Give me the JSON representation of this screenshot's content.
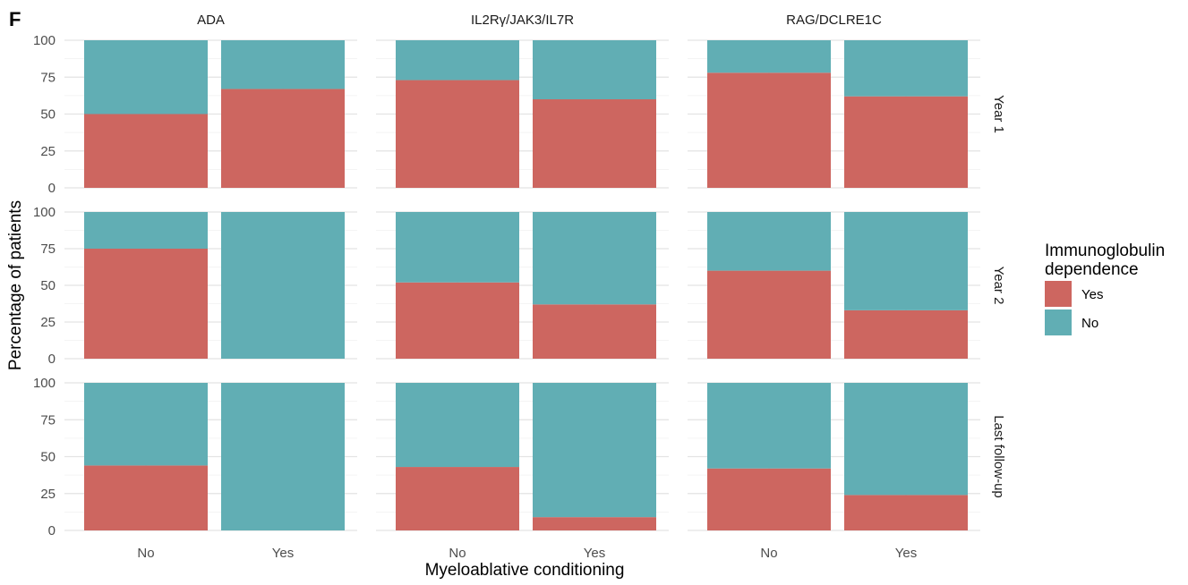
{
  "panel_label": "F",
  "colors": {
    "Yes": "#CD6660",
    "No": "#61AEB4"
  },
  "chart_data": {
    "type": "bar",
    "stacked": true,
    "percent_scale": true,
    "facet_columns": [
      "ADA",
      "IL2Rγ/JAK3/IL7R",
      "RAG/DCLRE1C"
    ],
    "facet_rows": [
      "Year 1",
      "Year 2",
      "Last follow-up"
    ],
    "categories": [
      "No",
      "Yes"
    ],
    "xlabel": "Myeloablative conditioning",
    "ylabel": "Percentage of patients",
    "ylim": [
      0,
      100
    ],
    "yticks": [
      0,
      25,
      50,
      75,
      100
    ],
    "grid": true,
    "legend": {
      "title": "Immunoglobulin dependence",
      "title_lines": [
        "Immunoglobulin",
        "dependence"
      ],
      "position": "right",
      "entries": [
        "Yes",
        "No"
      ]
    },
    "series": [
      {
        "name": "Yes",
        "values": [
          [
            [
              50,
              67
            ],
            [
              73,
              60
            ],
            [
              78,
              62
            ]
          ],
          [
            [
              75,
              0
            ],
            [
              52,
              37
            ],
            [
              60,
              33
            ]
          ],
          [
            [
              44,
              0
            ],
            [
              43,
              9
            ],
            [
              42,
              24
            ]
          ]
        ]
      },
      {
        "name": "No",
        "values": [
          [
            [
              50,
              33
            ],
            [
              27,
              40
            ],
            [
              22,
              38
            ]
          ],
          [
            [
              25,
              100
            ],
            [
              48,
              63
            ],
            [
              40,
              67
            ]
          ],
          [
            [
              56,
              100
            ],
            [
              57,
              91
            ],
            [
              58,
              76
            ]
          ]
        ]
      }
    ]
  }
}
